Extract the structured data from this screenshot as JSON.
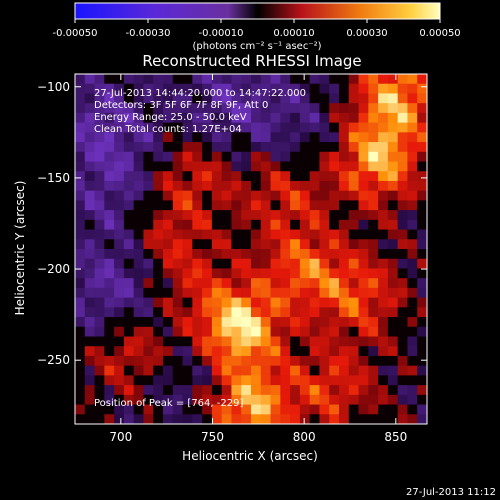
{
  "window": {
    "timestamp": "27-Jul-2013 11:12"
  },
  "colorbar": {
    "ticks": [
      "-0.00050",
      "-0.00030",
      "-0.00010",
      "0.00010",
      "0.00030",
      "0.00050"
    ],
    "unit_label": "(photons cm⁻² s⁻¹ asec⁻²)",
    "range": [
      -0.0005,
      0.0005
    ],
    "colormap_note": "blue-purple for negative, black-red-orange-yellow-white for positive",
    "colors": {
      "negative_low": "#1a14ff",
      "negative_mid": "#6a2fbf",
      "zero": "#000000",
      "positive_low": "#b8121a",
      "positive_mid": "#f07a10",
      "positive_high": "#ffff80"
    }
  },
  "chart_data": {
    "type": "heatmap",
    "title": "Reconstructed RHESSI Image",
    "xlabel": "Heliocentric X (arcsec)",
    "ylabel": "Heliocentric Y (arcsec)",
    "xlim": [
      675,
      867
    ],
    "ylim": [
      -285,
      -93
    ],
    "x_ticks": [
      700,
      750,
      800,
      850
    ],
    "y_ticks": [
      -100,
      -150,
      -200,
      -250
    ],
    "annotations": [
      "27-Jul-2013 14:44:20.000 to 14:47:22.000",
      "Detectors: 3F 5F 6F 7F 8F 9F, Att 0",
      "Energy Range: 25.0 - 50.0 keV",
      "Clean    Total counts: 1.27E+04"
    ],
    "peak_label": "Position of Peak = [764, -229]",
    "peak_position": [
      764,
      -229
    ],
    "bright_regions": [
      {
        "x": 764,
        "y": -232,
        "strength": 1.0
      },
      {
        "x": 770,
        "y": -275,
        "strength": 0.85
      },
      {
        "x": 840,
        "y": -140,
        "strength": 0.8
      },
      {
        "x": 850,
        "y": -105,
        "strength": 0.75
      },
      {
        "x": 800,
        "y": -200,
        "strength": 0.55
      },
      {
        "x": 830,
        "y": -215,
        "strength": 0.5
      },
      {
        "x": 720,
        "y": -180,
        "strength": 0.45
      },
      {
        "x": 705,
        "y": -245,
        "strength": 0.45
      },
      {
        "x": 740,
        "y": -150,
        "strength": 0.4
      },
      {
        "x": 790,
        "y": -160,
        "strength": 0.4
      },
      {
        "x": 815,
        "y": -265,
        "strength": 0.45
      },
      {
        "x": 735,
        "y": -205,
        "strength": 0.35
      }
    ],
    "dim_regions": [
      {
        "x": 690,
        "y": -120,
        "strength": 0.7
      },
      {
        "x": 700,
        "y": -160,
        "strength": 0.6
      },
      {
        "x": 760,
        "y": -110,
        "strength": 0.65
      },
      {
        "x": 690,
        "y": -220,
        "strength": 0.5
      },
      {
        "x": 740,
        "y": -260,
        "strength": 0.45
      },
      {
        "x": 800,
        "y": -120,
        "strength": 0.35
      },
      {
        "x": 710,
        "y": -200,
        "strength": 0.5
      }
    ]
  }
}
